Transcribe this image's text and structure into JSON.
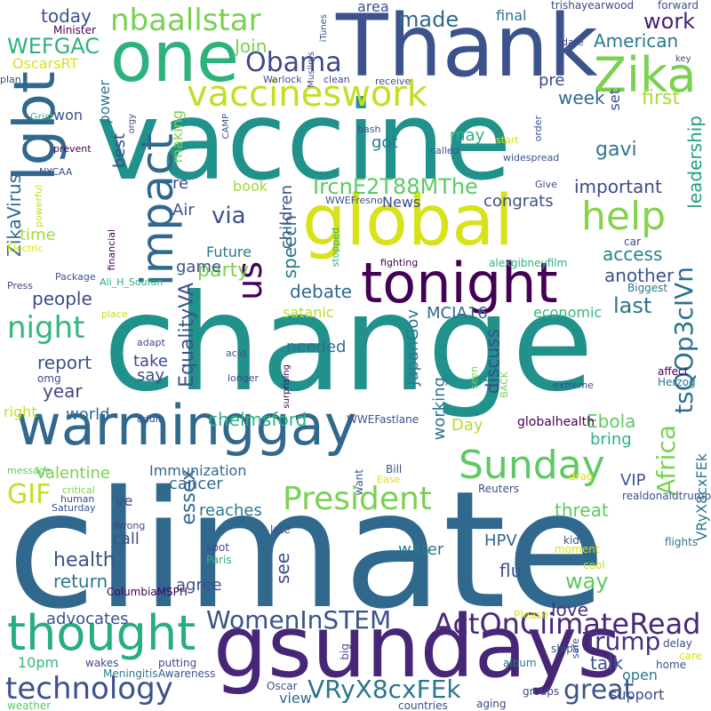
{
  "words": [
    {
      "text": "climate",
      "color": "#31688e"
    },
    {
      "text": "change",
      "color": "#21918c"
    },
    {
      "text": "vaccine",
      "color": "#21918c"
    },
    {
      "text": "Thank",
      "color": "#3b528b"
    },
    {
      "text": "gsundays",
      "color": "#482677"
    },
    {
      "text": "one",
      "color": "#2db27d"
    },
    {
      "text": "global",
      "color": "#d8e219"
    },
    {
      "text": "warminggay",
      "color": "#31688e"
    },
    {
      "text": "tonight",
      "color": "#440154"
    },
    {
      "text": "lgbt",
      "color": "#31688e"
    },
    {
      "text": "impact",
      "color": "#31688e"
    },
    {
      "text": "thought",
      "color": "#27ad81"
    },
    {
      "text": "vaccineswork",
      "color": "#c2df23"
    },
    {
      "text": "Zika",
      "color": "#7ad151"
    },
    {
      "text": "help",
      "color": "#84d44b"
    },
    {
      "text": "Sunday",
      "color": "#5ec962"
    },
    {
      "text": "ActOnClimateRead",
      "color": "#482878"
    },
    {
      "text": "President",
      "color": "#7ad151"
    },
    {
      "text": "nbaallstar",
      "color": "#7ad151"
    },
    {
      "text": "technology",
      "color": "#3b528b"
    },
    {
      "text": "Obama",
      "color": "#3e4a89"
    },
    {
      "text": "WomenInSTEM",
      "color": "#3b528b"
    },
    {
      "text": "VRyX8cxFEk",
      "color": "#2a788e"
    },
    {
      "text": "night",
      "color": "#35b779"
    },
    {
      "text": "us",
      "color": "#440154"
    },
    {
      "text": "great",
      "color": "#3b528b"
    },
    {
      "text": "Trump",
      "color": "#46327e"
    },
    {
      "text": "GIF",
      "color": "#c2df23"
    },
    {
      "text": "tsQOp3cIVn",
      "color": "#2c728e"
    },
    {
      "text": "IrcnE2T88MThe",
      "color": "#5ec962"
    },
    {
      "text": "WEFGAC",
      "color": "#2db27d"
    },
    {
      "text": "made",
      "color": "#31688e"
    },
    {
      "text": "work",
      "color": "#481f70"
    },
    {
      "text": "today",
      "color": "#3b528b"
    },
    {
      "text": "American",
      "color": "#2a788e"
    },
    {
      "text": "Africa",
      "color": "#7ad151"
    },
    {
      "text": "Join",
      "color": "#7ad151"
    },
    {
      "text": "via",
      "color": "#3b528b"
    },
    {
      "text": "first",
      "color": "#a8db34"
    },
    {
      "text": "gavi",
      "color": "#2a788e"
    },
    {
      "text": "leadership",
      "color": "#1f9e89"
    },
    {
      "text": "party",
      "color": "#7ad151"
    },
    {
      "text": "week",
      "color": "#31688e"
    },
    {
      "text": "people",
      "color": "#3e4a89"
    },
    {
      "text": "debate",
      "color": "#31688e"
    },
    {
      "text": "access",
      "color": "#26828e"
    },
    {
      "text": "last",
      "color": "#2c728e"
    },
    {
      "text": "another",
      "color": "#3b528b"
    },
    {
      "text": "important",
      "color": "#3e4a89"
    },
    {
      "text": "speech",
      "color": "#2a788e"
    },
    {
      "text": "EqualityVA",
      "color": "#3b528b"
    },
    {
      "text": "year",
      "color": "#3e4a89"
    },
    {
      "text": "report",
      "color": "#3b528b"
    },
    {
      "text": "discuss",
      "color": "#3e4a89"
    },
    {
      "text": "MCIA16",
      "color": "#31688e"
    },
    {
      "text": "Ebola",
      "color": "#5ec962"
    },
    {
      "text": "chelmsford",
      "color": "#2db27d"
    },
    {
      "text": "health",
      "color": "#3b528b"
    },
    {
      "text": "return",
      "color": "#2a788e"
    },
    {
      "text": "threat",
      "color": "#5ec962"
    },
    {
      "text": "way",
      "color": "#5ec962"
    },
    {
      "text": "love",
      "color": "#46327e"
    },
    {
      "text": "essex",
      "color": "#31688e"
    },
    {
      "text": "flu",
      "color": "#3b528b"
    },
    {
      "text": "water",
      "color": "#2a788e"
    },
    {
      "text": "HPV",
      "color": "#31688e"
    },
    {
      "text": "agree",
      "color": "#3b528b"
    },
    {
      "text": "advocates",
      "color": "#3b528b"
    },
    {
      "text": "talk",
      "color": "#3b528b"
    },
    {
      "text": "support",
      "color": "#3e4a89"
    },
    {
      "text": "open",
      "color": "#2a788e"
    },
    {
      "text": "view",
      "color": "#31688e"
    },
    {
      "text": "10pm",
      "color": "#35b779"
    },
    {
      "text": "world",
      "color": "#31688e"
    },
    {
      "text": "right",
      "color": "#c2df23"
    },
    {
      "text": "Valentine",
      "color": "#7ad151"
    },
    {
      "text": "cancer",
      "color": "#31688e"
    },
    {
      "text": "call",
      "color": "#3b528b"
    },
    {
      "text": "see",
      "color": "#3e4a89"
    },
    {
      "text": "reaches",
      "color": "#2a788e"
    },
    {
      "text": "Immunization",
      "color": "#31688e"
    },
    {
      "text": "VIP",
      "color": "#3b528b"
    },
    {
      "text": "bring",
      "color": "#2db27d"
    },
    {
      "text": "Day",
      "color": "#b5de2b"
    },
    {
      "text": "working",
      "color": "#2c728e"
    },
    {
      "text": "JapanGov",
      "color": "#2a788e"
    },
    {
      "text": "needed",
      "color": "#2c728e"
    },
    {
      "text": "satanic",
      "color": "#b5de2b"
    },
    {
      "text": "economic",
      "color": "#35b779"
    },
    {
      "text": "take",
      "color": "#3e4a89"
    },
    {
      "text": "say",
      "color": "#3e4a89"
    },
    {
      "text": "children",
      "color": "#3b528b"
    },
    {
      "text": "game",
      "color": "#3b528b"
    },
    {
      "text": "Future",
      "color": "#2a788e"
    },
    {
      "text": "Air",
      "color": "#3b528b"
    },
    {
      "text": "time",
      "color": "#a8db34"
    },
    {
      "text": "book",
      "color": "#9fda3a"
    },
    {
      "text": "News",
      "color": "#3e4a89"
    },
    {
      "text": "congrats",
      "color": "#3b528b"
    },
    {
      "text": "got",
      "color": "#2a788e"
    },
    {
      "text": "may",
      "color": "#2db27d"
    },
    {
      "text": "re",
      "color": "#3e4a89"
    },
    {
      "text": "won",
      "color": "#3b528b"
    },
    {
      "text": "power",
      "color": "#2a788e"
    },
    {
      "text": "best",
      "color": "#3e4a89"
    },
    {
      "text": "making",
      "color": "#7ad151"
    },
    {
      "text": "pre",
      "color": "#3e4a89"
    },
    {
      "text": "set",
      "color": "#3e4a89"
    },
    {
      "text": "ZikaVirus",
      "color": "#31688e"
    },
    {
      "text": "OscarsRT",
      "color": "#d8e219"
    },
    {
      "text": "Minister",
      "color": "#440154"
    },
    {
      "text": "area",
      "color": "#3b528b"
    },
    {
      "text": "final",
      "color": "#2c728e"
    },
    {
      "text": "trishayearwood",
      "color": "#3e4a89"
    },
    {
      "text": "forward",
      "color": "#3b528b"
    },
    {
      "text": "ve",
      "color": "#3e4a89"
    },
    {
      "text": "omg",
      "color": "#3e4a89"
    },
    {
      "text": "VRyX8cxFEk",
      "color": "#2a788e"
    },
    {
      "text": "WWEFastlane",
      "color": "#3b528b"
    },
    {
      "text": "globalhealth",
      "color": "#440154"
    },
    {
      "text": "car",
      "color": "#3e4a89"
    },
    {
      "text": "fighting",
      "color": "#440154"
    },
    {
      "text": "alexgibneyfilm",
      "color": "#2db27d"
    },
    {
      "text": "Biggest",
      "color": "#2a788e"
    },
    {
      "text": "affect",
      "color": "#440154"
    },
    {
      "text": "Herzog",
      "color": "#2a788e"
    },
    {
      "text": "extreme",
      "color": "#3b528b"
    },
    {
      "text": "drag",
      "color": "#d8e219"
    },
    {
      "text": "Reuters",
      "color": "#3b528b"
    },
    {
      "text": "realdonaldtrump",
      "color": "#3b528b"
    },
    {
      "text": "kid",
      "color": "#3b528b"
    },
    {
      "text": "moment",
      "color": "#d8e219"
    },
    {
      "text": "flights",
      "color": "#2a788e"
    },
    {
      "text": "cool",
      "color": "#c2df23"
    },
    {
      "text": "delay",
      "color": "#3e4a89"
    },
    {
      "text": "care",
      "color": "#d8e219"
    },
    {
      "text": "home",
      "color": "#3b528b"
    },
    {
      "text": "groups",
      "color": "#3e4a89"
    },
    {
      "text": "aging",
      "color": "#3e4a89"
    },
    {
      "text": "countries",
      "color": "#3e4a89"
    },
    {
      "text": "album",
      "color": "#2a788e"
    },
    {
      "text": "Please",
      "color": "#d8e219"
    },
    {
      "text": "ships",
      "color": "#3b528b"
    },
    {
      "text": "safe",
      "color": "#3e4a89"
    },
    {
      "text": "big",
      "color": "#3e4a89"
    },
    {
      "text": "Oscar",
      "color": "#3b528b"
    },
    {
      "text": "putting",
      "color": "#3e4a89"
    },
    {
      "text": "Awareness",
      "color": "#3b528b"
    },
    {
      "text": "Meningitis",
      "color": "#2a788e"
    },
    {
      "text": "wakes",
      "color": "#3e4a89"
    },
    {
      "text": "weather",
      "color": "#5ec962"
    },
    {
      "text": "ColumbiaMSPH",
      "color": "#440154"
    },
    {
      "text": "Wrong",
      "color": "#3e4a89"
    },
    {
      "text": "Saturday",
      "color": "#3b528b"
    },
    {
      "text": "human",
      "color": "#3e4a89"
    },
    {
      "text": "critical",
      "color": "#7ad151"
    },
    {
      "text": "message",
      "color": "#5ec962"
    },
    {
      "text": "want",
      "color": "#3b528b"
    },
    {
      "text": "Bill",
      "color": "#3b528b"
    },
    {
      "text": "Ease",
      "color": "#d8e219"
    },
    {
      "text": "late",
      "color": "#3b528b"
    },
    {
      "text": "spot",
      "color": "#3e4a89"
    },
    {
      "text": "Paris",
      "color": "#2db27d"
    },
    {
      "text": "adult",
      "color": "#3e4a89"
    },
    {
      "text": "surprising",
      "color": "#440154"
    },
    {
      "text": "BACK",
      "color": "#7ad151"
    },
    {
      "text": "seen",
      "color": "#7ad151"
    },
    {
      "text": "acid",
      "color": "#3b528b"
    },
    {
      "text": "longer",
      "color": "#3e4a89"
    },
    {
      "text": "adapt",
      "color": "#3e4a89"
    },
    {
      "text": "place",
      "color": "#c2df23"
    },
    {
      "text": "Ali_H_Soufan",
      "color": "#2db27d"
    },
    {
      "text": "Package",
      "color": "#3b528b"
    },
    {
      "text": "Press",
      "color": "#3e4a89"
    },
    {
      "text": "Electric",
      "color": "#d8e219"
    },
    {
      "text": "financial",
      "color": "#440154"
    },
    {
      "text": "stopped",
      "color": "#2db27d"
    },
    {
      "text": "WWEFresno",
      "color": "#3b528b"
    },
    {
      "text": "powerful",
      "color": "#c2df23"
    },
    {
      "text": "NYCAA",
      "color": "#3b528b"
    },
    {
      "text": "prevent",
      "color": "#440154"
    },
    {
      "text": "Grist",
      "color": "#35b779"
    },
    {
      "text": "plan",
      "color": "#3e4a89"
    },
    {
      "text": "Warlock",
      "color": "#3b528b"
    },
    {
      "text": "clean",
      "color": "#3e4a89"
    },
    {
      "text": "receive",
      "color": "#3b528b"
    },
    {
      "text": "iTunes",
      "color": "#3b528b"
    },
    {
      "text": "Muslims",
      "color": "#3e4a89"
    },
    {
      "text": "date",
      "color": "#3e4a89"
    },
    {
      "text": "key",
      "color": "#3e4a89"
    },
    {
      "text": "CAMP",
      "color": "#3b528b"
    },
    {
      "text": "orgy",
      "color": "#3e4a89"
    },
    {
      "text": "bash",
      "color": "#3e4a89"
    },
    {
      "text": "called",
      "color": "#3b528b"
    },
    {
      "text": "start",
      "color": "#d8e219"
    },
    {
      "text": "order",
      "color": "#3b528b"
    },
    {
      "text": "widespread",
      "color": "#3b528b"
    },
    {
      "text": "Give",
      "color": "#3e4a89"
    },
    {
      "text": "AZ",
      "color": "#3b528b"
    }
  ]
}
